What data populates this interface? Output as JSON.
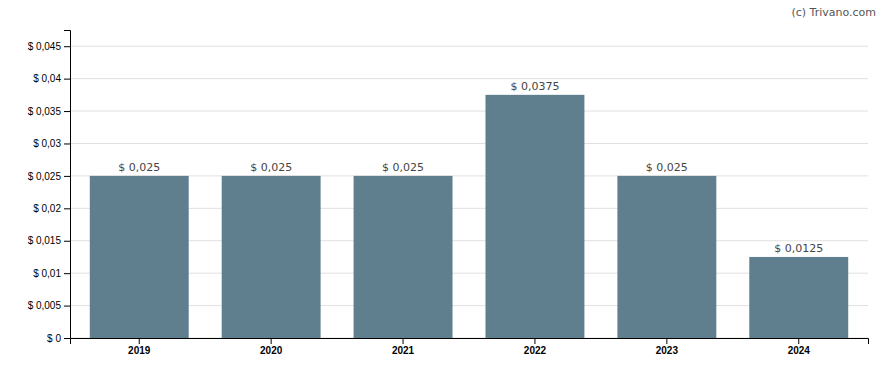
{
  "chart_data": {
    "type": "bar",
    "categories": [
      "2019",
      "2020",
      "2021",
      "2022",
      "2023",
      "2024"
    ],
    "values": [
      0.025,
      0.025,
      0.025,
      0.0375,
      0.025,
      0.0125
    ],
    "value_labels": [
      "$ 0,025",
      "$ 0,025",
      "$ 0,025",
      "$ 0,0375",
      "$ 0,025",
      "$ 0,0125"
    ],
    "color": "#5f7f8f",
    "ylim": [
      0,
      0.0475
    ],
    "yticks": [
      {
        "value": 0,
        "label": "$ 0"
      },
      {
        "value": 0.005,
        "label": "$ 0,005"
      },
      {
        "value": 0.01,
        "label": "$ 0,01"
      },
      {
        "value": 0.015,
        "label": "$ 0,015"
      },
      {
        "value": 0.02,
        "label": "$ 0,02"
      },
      {
        "value": 0.025,
        "label": "$ 0,025"
      },
      {
        "value": 0.03,
        "label": "$ 0,03"
      },
      {
        "value": 0.035,
        "label": "$ 0,035"
      },
      {
        "value": 0.04,
        "label": "$ 0,04"
      },
      {
        "value": 0.045,
        "label": "$ 0,045"
      }
    ],
    "grid": true,
    "data_labels": true,
    "annotations": [
      "(c) Trivano.com"
    ]
  }
}
